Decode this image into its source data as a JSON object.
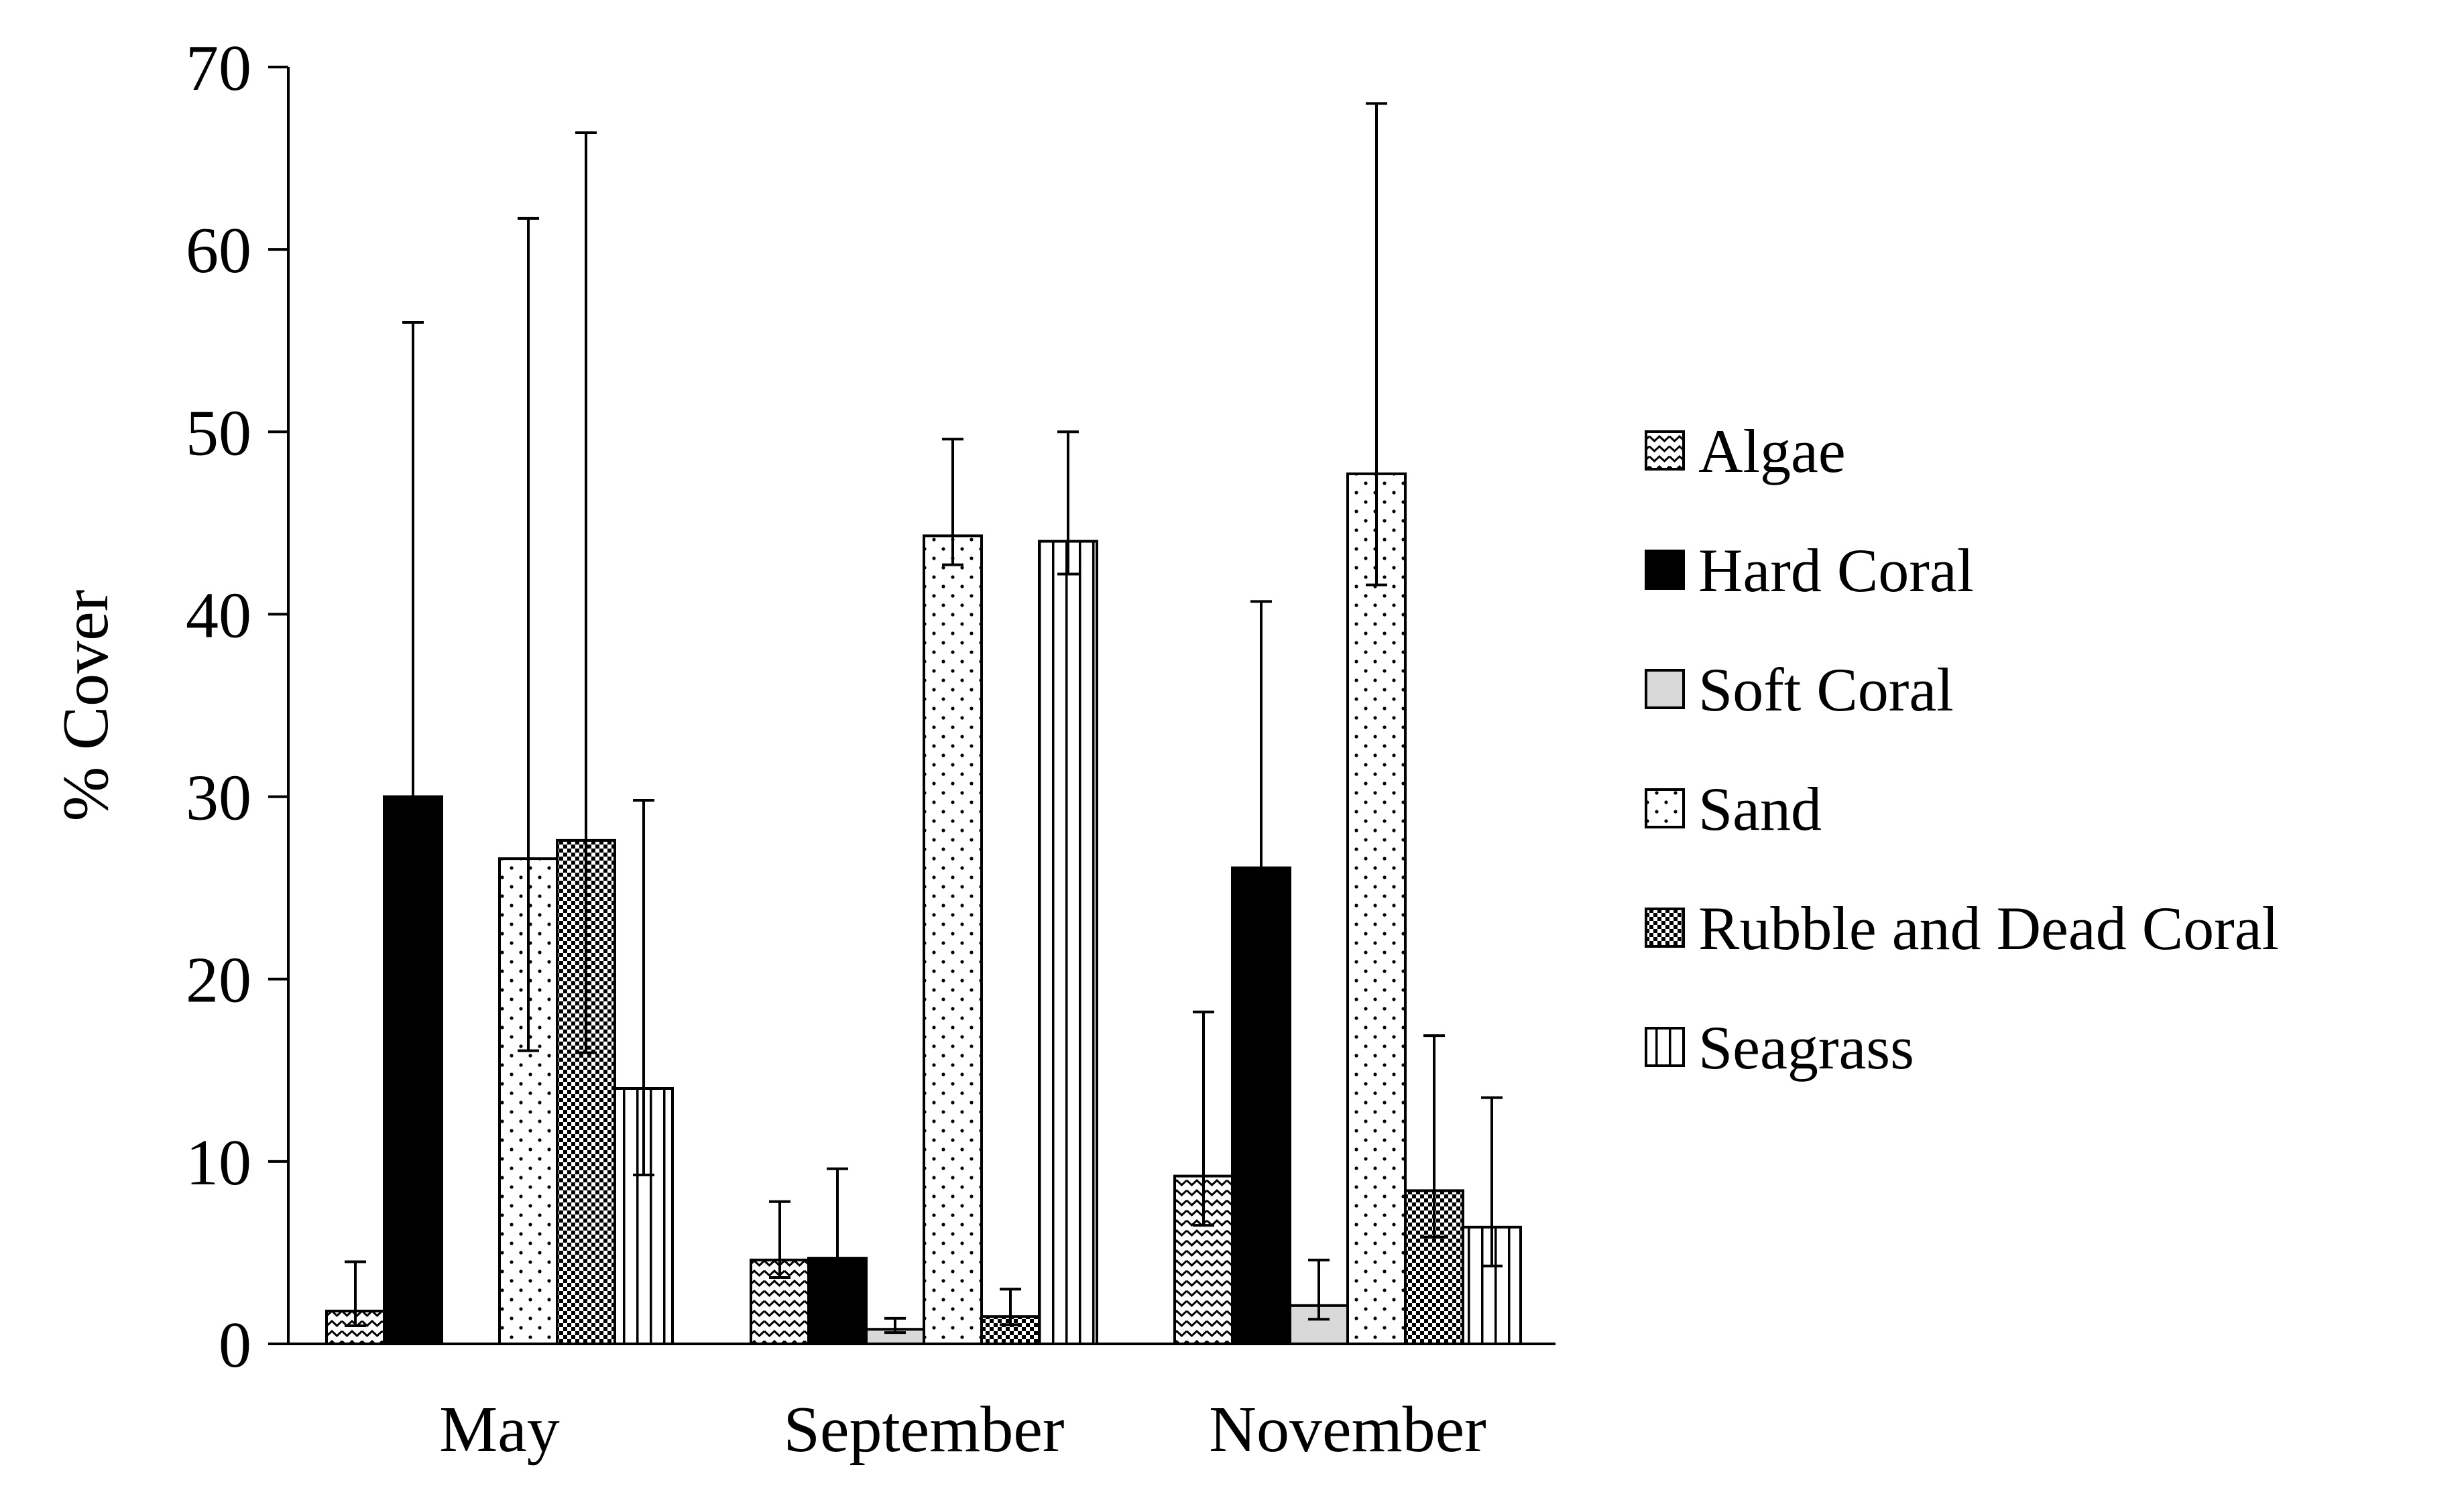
{
  "chart_data": {
    "type": "bar",
    "title": "",
    "xlabel": "",
    "ylabel": "% Cover",
    "ylim": [
      0,
      70
    ],
    "yticks": [
      0,
      10,
      20,
      30,
      40,
      50,
      60,
      70
    ],
    "grid": false,
    "legend_position": "right",
    "categories": [
      "May",
      "September",
      "November"
    ],
    "series": [
      {
        "name": "Algae",
        "pattern": "zigzag",
        "values": [
          1.8,
          4.6,
          9.2
        ],
        "errors": [
          2.7,
          3.2,
          9.0
        ]
      },
      {
        "name": "Hard Coral",
        "pattern": "solid-black",
        "values": [
          30.0,
          4.7,
          26.1
        ],
        "errors": [
          26.0,
          4.9,
          14.6
        ]
      },
      {
        "name": "Soft Coral",
        "pattern": "solid-gray",
        "values": [
          0.0,
          0.8,
          2.1
        ],
        "errors": [
          0.0,
          0.6,
          2.5
        ]
      },
      {
        "name": "Sand",
        "pattern": "dots",
        "values": [
          26.6,
          44.3,
          47.7
        ],
        "errors": [
          35.1,
          5.3,
          20.3
        ]
      },
      {
        "name": "Rubble and Dead Coral",
        "pattern": "checker",
        "values": [
          27.6,
          1.5,
          8.4
        ],
        "errors": [
          38.8,
          1.5,
          8.5
        ]
      },
      {
        "name": "Seagrass",
        "pattern": "vlines",
        "values": [
          14.0,
          44.0,
          6.4
        ],
        "errors": [
          15.8,
          6.0,
          7.1
        ]
      }
    ]
  }
}
